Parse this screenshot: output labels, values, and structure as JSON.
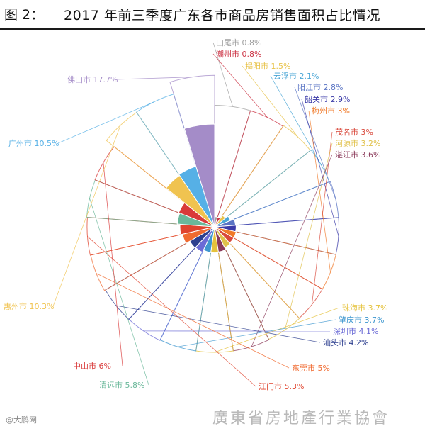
{
  "header": {
    "figure_label": "图 2：",
    "title": "2017 年前三季度广东各市商品房销售面积占比情况"
  },
  "footer": {
    "source_mark": "@大鹏网",
    "association": "廣東省房地產行業協會"
  },
  "chart_data": {
    "type": "pie",
    "variant": "rose",
    "title": "2017 年前三季度广东各市商品房销售面积占比情况",
    "unit": "%",
    "slices": [
      {
        "name": "山尾市",
        "value": 0.8,
        "color": "#a0a0a0",
        "label": "山尾市 0.8%"
      },
      {
        "name": "潮州市",
        "value": 0.8,
        "color": "#cc3344",
        "label": "潮州市 0.8%"
      },
      {
        "name": "揭阳市",
        "value": 1.5,
        "color": "#e8c34a",
        "label": "揭阳市 1.5%"
      },
      {
        "name": "云浮市",
        "value": 2.1,
        "color": "#4aa6d6",
        "label": "云浮市 2.1%"
      },
      {
        "name": "阳江市",
        "value": 2.8,
        "color": "#5a74c4",
        "label": "阳江市 2.8%"
      },
      {
        "name": "韶关市",
        "value": 2.9,
        "color": "#3b3ba8",
        "label": "韶关市 2.9%"
      },
      {
        "name": "梅州市",
        "value": 3,
        "color": "#f07a2a",
        "label": "梅州市 3%"
      },
      {
        "name": "茂名市",
        "value": 3,
        "color": "#d9483b",
        "label": "茂名市 3%"
      },
      {
        "name": "河源市",
        "value": 3.2,
        "color": "#e0c14a",
        "label": "河源市 3.2%"
      },
      {
        "name": "湛江市",
        "value": 3.6,
        "color": "#8b3a5a",
        "label": "湛江市 3.6%"
      },
      {
        "name": "珠海市",
        "value": 3.7,
        "color": "#e5c23b",
        "label": "珠海市 3.7%"
      },
      {
        "name": "肇庆市",
        "value": 3.7,
        "color": "#3f97cf",
        "label": "肇庆市 3.7%"
      },
      {
        "name": "深圳市",
        "value": 4.1,
        "color": "#6b6bd6",
        "label": "深圳市 4.1%"
      },
      {
        "name": "汕头市",
        "value": 4.2,
        "color": "#2d3f8f",
        "label": "汕头市 4.2%"
      },
      {
        "name": "东莞市",
        "value": 5,
        "color": "#f06a30",
        "label": "东莞市 5%"
      },
      {
        "name": "江门市",
        "value": 5.3,
        "color": "#e0442e",
        "label": "江门市 5.3%"
      },
      {
        "name": "清远市",
        "value": 5.8,
        "color": "#6ab89a",
        "label": "清远市 5.8%"
      },
      {
        "name": "中山市",
        "value": 6,
        "color": "#d93a3a",
        "label": "中山市 6%"
      },
      {
        "name": "惠州市",
        "value": 10.3,
        "color": "#f0c350",
        "label": "惠州市 10.3%"
      },
      {
        "name": "广州市",
        "value": 10.5,
        "color": "#56b0e6",
        "label": "广州市 10.5%"
      },
      {
        "name": "佛山市",
        "value": 17.7,
        "color": "#a48cc8",
        "label": "佛山市 17.7%"
      }
    ]
  }
}
